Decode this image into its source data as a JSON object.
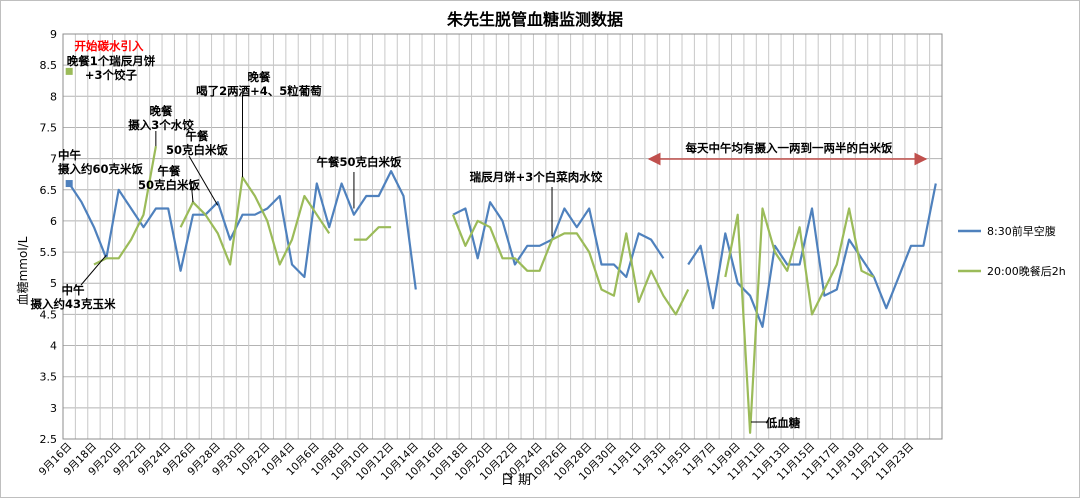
{
  "chart_data": {
    "type": "line",
    "title": "朱先生脱管血糖监测数据",
    "xlabel": "日 期",
    "ylabel": "血糖mmol/L",
    "ylim": [
      2.5,
      9
    ],
    "yticks": [
      "2.5",
      "3",
      "3.5",
      "4",
      "4.5",
      "5",
      "5.5",
      "6",
      "6.5",
      "7",
      "7.5",
      "8",
      "8.5",
      "9"
    ],
    "grid": true,
    "legend_position": "right",
    "x_labels": [
      "9月16日",
      "9月18日",
      "9月20日",
      "9月22日",
      "9月24日",
      "9月26日",
      "9月28日",
      "9月30日",
      "10月2日",
      "10月4日",
      "10月6日",
      "10月8日",
      "10月10日",
      "10月12日",
      "10月14日",
      "10月16日",
      "10月18日",
      "10月20日",
      "10月22日",
      "10月24日",
      "10月26日",
      "10月28日",
      "10月30日",
      "11月1日",
      "11月3日",
      "11月5日",
      "11月7日",
      "11月9日",
      "11月11日",
      "11月13日",
      "11月15日",
      "11月17日",
      "11月19日",
      "11月21日",
      "11月23日"
    ],
    "series": [
      {
        "name": "8:30前早空腹",
        "color": "#4f81bd",
        "values": [
          6.6,
          6.3,
          5.9,
          5.4,
          6.5,
          6.2,
          5.9,
          6.2,
          6.2,
          5.2,
          6.1,
          6.1,
          6.3,
          5.7,
          6.1,
          6.1,
          6.2,
          6.4,
          5.3,
          5.1,
          6.6,
          5.9,
          6.6,
          6.1,
          6.4,
          6.4,
          6.8,
          6.4,
          4.9,
          null,
          null,
          6.1,
          6.2,
          5.4,
          6.3,
          6.0,
          5.3,
          5.6,
          5.6,
          5.7,
          6.2,
          5.9,
          6.2,
          5.3,
          5.3,
          5.1,
          5.8,
          5.7,
          5.4,
          null,
          5.3,
          5.6,
          4.6,
          5.8,
          5.0,
          4.8,
          4.3,
          5.6,
          5.3,
          5.3,
          6.2,
          4.8,
          4.9,
          5.7,
          5.4,
          5.1,
          4.6,
          5.1,
          5.6,
          5.6,
          6.6
        ]
      },
      {
        "name": "20:00晚餐后2h",
        "color": "#9bbb59",
        "values": [
          null,
          null,
          5.3,
          5.4,
          5.4,
          5.7,
          6.1,
          7.2,
          null,
          5.9,
          6.3,
          6.1,
          5.8,
          5.3,
          6.7,
          6.4,
          6.0,
          5.3,
          5.7,
          6.4,
          6.1,
          5.8,
          null,
          5.7,
          5.7,
          5.9,
          5.9,
          null,
          null,
          null,
          null,
          6.1,
          5.6,
          6.0,
          5.9,
          5.4,
          5.4,
          5.2,
          5.2,
          5.7,
          5.8,
          5.8,
          5.5,
          4.9,
          4.8,
          5.8,
          4.7,
          5.2,
          4.8,
          4.5,
          4.9,
          null,
          null,
          5.1,
          6.1,
          2.6,
          6.2,
          5.5,
          5.2,
          5.9,
          4.5,
          4.9,
          5.3,
          6.2,
          5.2,
          5.1
        ]
      }
    ],
    "annotations": [
      {
        "lines": [
          "开始碳水引入"
        ],
        "color": "#ff0000"
      },
      {
        "lines": [
          "晚餐1个瑞辰月饼",
          "+3个饺子"
        ]
      },
      {
        "lines": [
          "中午",
          "摄入约60克米饭"
        ]
      },
      {
        "lines": [
          "中午",
          "摄入约43克玉米"
        ]
      },
      {
        "lines": [
          "晚餐",
          "摄入3个水饺"
        ]
      },
      {
        "lines": [
          "午餐",
          "50克白米饭"
        ]
      },
      {
        "lines": [
          "午餐",
          "50克白米饭"
        ]
      },
      {
        "lines": [
          "晚餐",
          "喝了2两酒+4、5粒葡萄"
        ]
      },
      {
        "lines": [
          "午餐50克白米饭"
        ]
      },
      {
        "lines": [
          "瑞辰月饼+3个白菜肉水饺"
        ]
      },
      {
        "lines": [
          "每天中午均有摄入一两到一两半的白米饭"
        ]
      },
      {
        "lines": [
          "低血糖"
        ]
      }
    ]
  }
}
